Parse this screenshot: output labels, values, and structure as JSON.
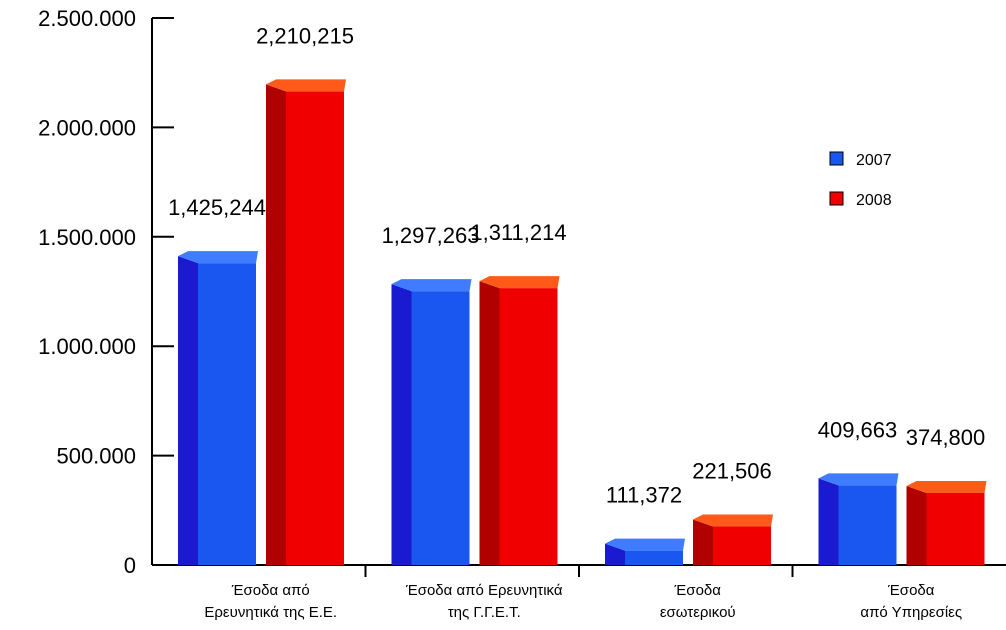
{
  "chart_data": {
    "type": "bar",
    "categories": [
      [
        "Έσοδα από",
        "Ερευνητικά της Ε.Ε."
      ],
      [
        "Έσοδα από Ερευνητικά",
        "της Γ.Γ.Ε.Τ."
      ],
      [
        "Έσοδα",
        "εσωτερικού"
      ],
      [
        "Έσοδα",
        "από Υπηρεσίες"
      ]
    ],
    "series": [
      {
        "name": "2007",
        "values": [
          1425244,
          1297263,
          111372,
          409663
        ],
        "labels": [
          "1,425,244",
          "1,297,263",
          "111,372",
          "409,663"
        ],
        "color_front": "#1a56f0",
        "color_side": "#1a1ad0",
        "color_top": "#3f7cff"
      },
      {
        "name": "2008",
        "values": [
          2210215,
          1311214,
          221506,
          374800
        ],
        "labels": [
          "2,210,215",
          "1,311,214",
          "221,506",
          "374,800"
        ],
        "color_front": "#f00000",
        "color_side": "#b00000",
        "color_top": "#ff5a1a"
      }
    ],
    "yticks": [
      0,
      500000,
      1000000,
      1500000,
      2000000,
      2500000
    ],
    "ytick_labels": [
      "0",
      "500.000",
      "1.000.000",
      "1.500.000",
      "2.000.000",
      "2.500.000"
    ],
    "ylim": [
      0,
      2500000
    ],
    "legend_position": "top-right",
    "grid": false
  }
}
